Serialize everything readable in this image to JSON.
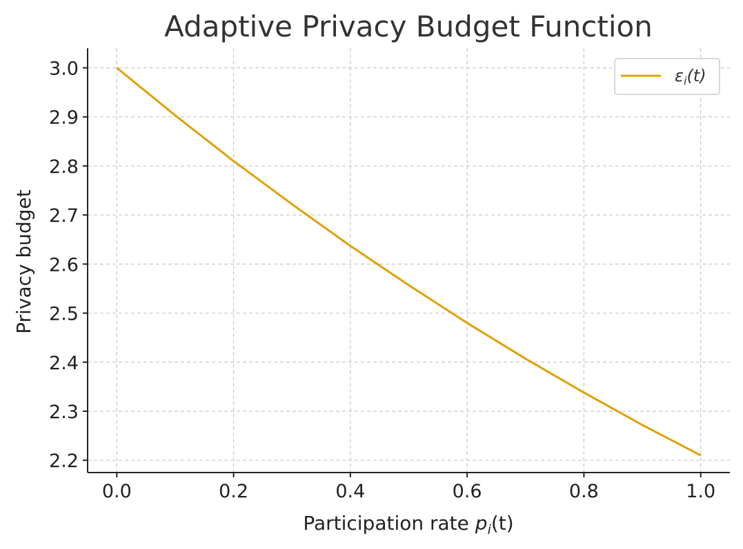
{
  "chart_data": {
    "type": "line",
    "title": "Adaptive Privacy Budget Function",
    "xlabel": "Participation rate",
    "xlabel_math": "p",
    "xlabel_sub": "i",
    "xlabel_arg": "(t)",
    "ylabel": "Privacy budget",
    "xlim": [
      -0.05,
      1.05
    ],
    "ylim": [
      2.175,
      3.04
    ],
    "xticks": [
      0.0,
      0.2,
      0.4,
      0.6,
      0.8,
      1.0
    ],
    "xtick_labels": [
      "0.0",
      "0.2",
      "0.4",
      "0.6",
      "0.8",
      "1.0"
    ],
    "yticks": [
      2.2,
      2.3,
      2.4,
      2.5,
      2.6,
      2.7,
      2.8,
      2.9,
      3.0
    ],
    "ytick_labels": [
      "2.2",
      "2.3",
      "2.4",
      "2.5",
      "2.6",
      "2.7",
      "2.8",
      "2.9",
      "3.0"
    ],
    "grid": true,
    "legend_position": "top-right",
    "series": [
      {
        "name": "ε_i(t)",
        "legend_symbol": "ε",
        "legend_sub": "i",
        "legend_arg": "(t)",
        "color": "#e0a000",
        "x": [
          0.0,
          0.1,
          0.2,
          0.3,
          0.4,
          0.5,
          0.6,
          0.7,
          0.8,
          0.9,
          1.0
        ],
        "y": [
          3.0,
          2.903,
          2.81,
          2.722,
          2.637,
          2.557,
          2.48,
          2.407,
          2.338,
          2.272,
          2.21
        ]
      }
    ]
  }
}
